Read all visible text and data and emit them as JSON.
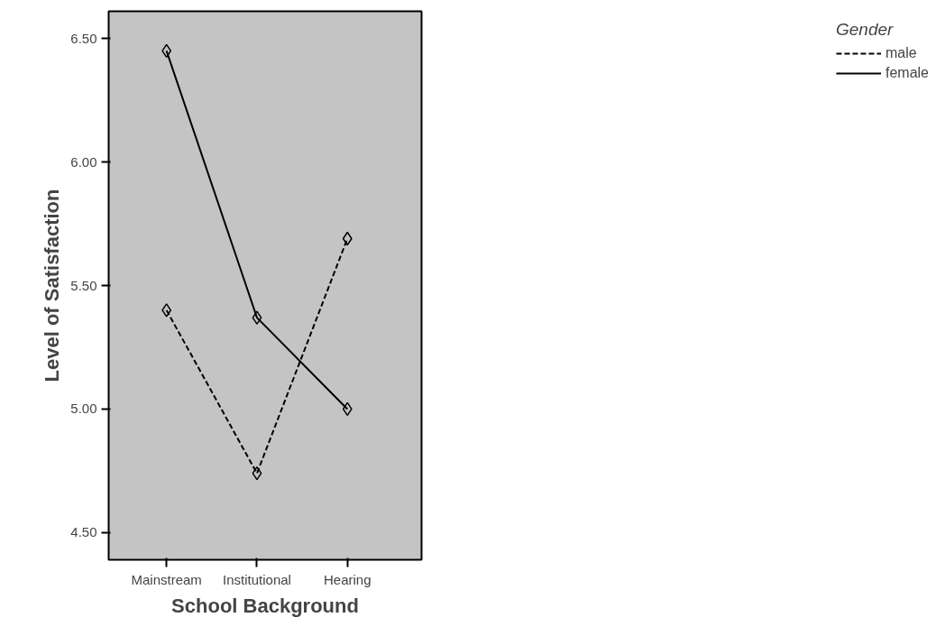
{
  "chart_data": {
    "type": "line",
    "xlabel": "School Background",
    "ylabel": "Level of Satisfaction",
    "legend_title": "Gender",
    "categories": [
      "Mainstream",
      "Institutional",
      "Hearing"
    ],
    "series": [
      {
        "name": "male",
        "color": "#000000",
        "values": [
          5.4,
          4.74,
          5.69
        ],
        "line_style": "dashed"
      },
      {
        "name": "female",
        "color": "#000000",
        "values": [
          6.45,
          5.37,
          5.0
        ],
        "line_style": "solid"
      }
    ],
    "ylim": [
      4.39,
      6.61
    ],
    "yticks": [
      {
        "value": 4.5,
        "label": "4.50"
      },
      {
        "value": 5.0,
        "label": "5.00"
      },
      {
        "value": 5.5,
        "label": "5.50"
      },
      {
        "value": 6.0,
        "label": "6.00"
      },
      {
        "value": 6.5,
        "label": "6.50"
      }
    ],
    "marker": "diamond",
    "grid": false,
    "legend": "top right"
  }
}
